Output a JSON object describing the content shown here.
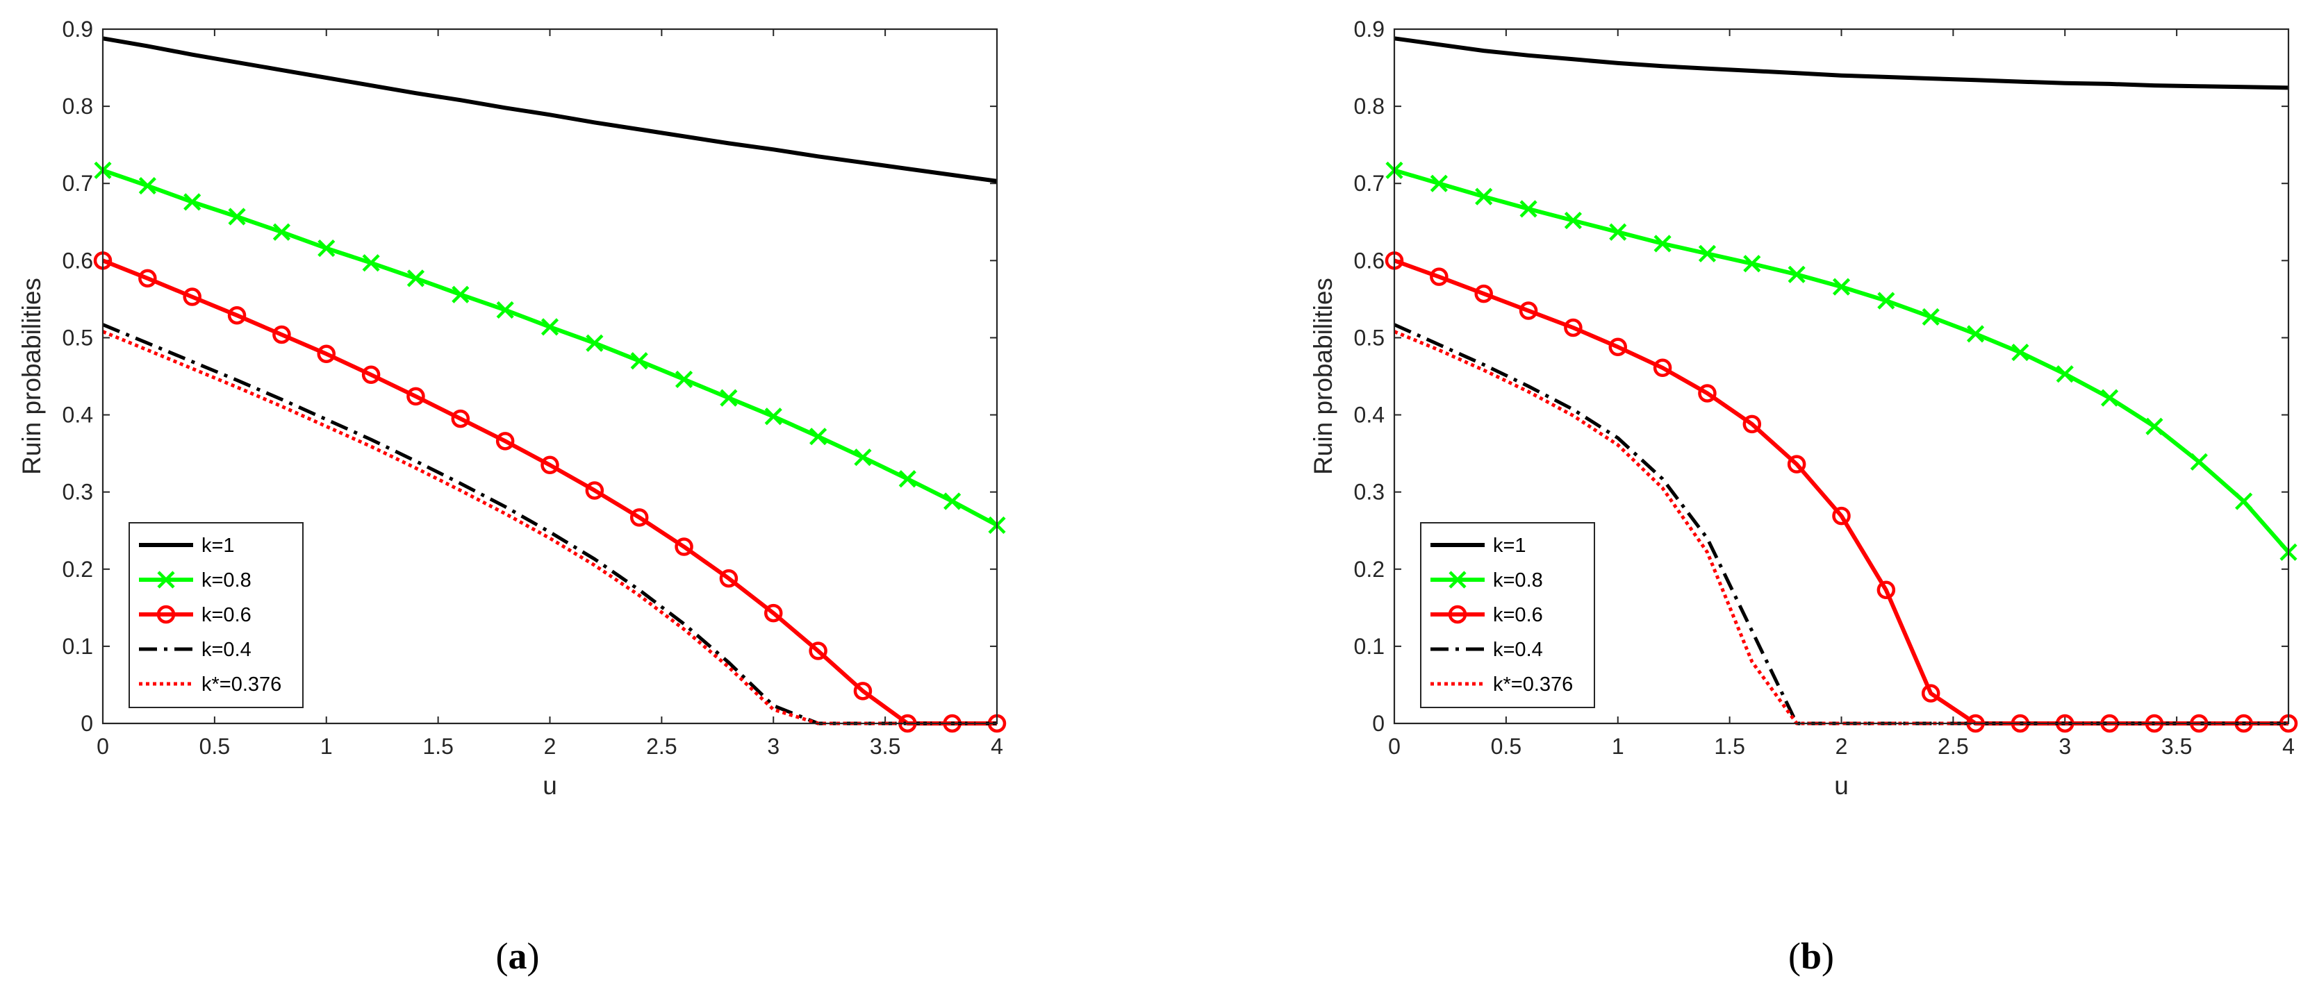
{
  "chart_data": [
    {
      "type": "line",
      "caption_letter": "a",
      "xlabel": "u",
      "ylabel": "Ruin probabilities",
      "xlim": [
        0,
        4
      ],
      "ylim": [
        0,
        0.9
      ],
      "xticks": [
        "0",
        "0.5",
        "1",
        "1.5",
        "2",
        "2.5",
        "3",
        "3.5",
        "4"
      ],
      "yticks": [
        "0",
        "0.1",
        "0.2",
        "0.3",
        "0.4",
        "0.5",
        "0.6",
        "0.7",
        "0.8",
        "0.9"
      ],
      "grid": false,
      "legend_position": "bottom-left",
      "x": [
        0,
        0.2,
        0.4,
        0.6,
        0.8,
        1.0,
        1.2,
        1.4,
        1.6,
        1.8,
        2.0,
        2.2,
        2.4,
        2.6,
        2.8,
        3.0,
        3.2,
        3.4,
        3.6,
        3.8,
        4.0
      ],
      "series": [
        {
          "name": "k=1",
          "color": "#000000",
          "style": "solid",
          "marker": "none",
          "values": [
            0.888,
            0.878,
            0.867,
            0.857,
            0.847,
            0.837,
            0.827,
            0.817,
            0.808,
            0.798,
            0.789,
            0.779,
            0.77,
            0.761,
            0.752,
            0.744,
            0.735,
            0.727,
            0.719,
            0.711,
            0.703
          ]
        },
        {
          "name": "k=0.8",
          "color": "#00ff00",
          "style": "solid",
          "marker": "x",
          "values": [
            0.717,
            0.697,
            0.676,
            0.657,
            0.637,
            0.616,
            0.597,
            0.577,
            0.556,
            0.536,
            0.514,
            0.493,
            0.47,
            0.446,
            0.422,
            0.398,
            0.372,
            0.345,
            0.317,
            0.288,
            0.257
          ]
        },
        {
          "name": "k=0.6",
          "color": "#ff0000",
          "style": "solid",
          "marker": "o",
          "values": [
            0.6,
            0.577,
            0.553,
            0.529,
            0.504,
            0.479,
            0.452,
            0.424,
            0.395,
            0.366,
            0.335,
            0.302,
            0.267,
            0.229,
            0.188,
            0.143,
            0.094,
            0.042,
            0.0,
            0.0,
            0.0
          ]
        },
        {
          "name": "k=0.4",
          "color": "#000000",
          "style": "dashdot",
          "marker": "none",
          "values": [
            0.517,
            0.493,
            0.469,
            0.445,
            0.42,
            0.394,
            0.368,
            0.34,
            0.311,
            0.281,
            0.248,
            0.213,
            0.173,
            0.129,
            0.079,
            0.023,
            0.0,
            0.0,
            0.0,
            0.0,
            0.0
          ]
        },
        {
          "name": "k*=0.376",
          "color": "#ff0000",
          "style": "dotted",
          "marker": "none",
          "values": [
            0.508,
            0.484,
            0.46,
            0.436,
            0.411,
            0.385,
            0.359,
            0.331,
            0.302,
            0.272,
            0.24,
            0.205,
            0.166,
            0.122,
            0.073,
            0.018,
            0.0,
            0.0,
            0.0,
            0.0,
            0.0
          ]
        }
      ]
    },
    {
      "type": "line",
      "caption_letter": "b",
      "xlabel": "u",
      "ylabel": "Ruin probabilities",
      "xlim": [
        0,
        4
      ],
      "ylim": [
        0,
        0.9
      ],
      "xticks": [
        "0",
        "0.5",
        "1",
        "1.5",
        "2",
        "2.5",
        "3",
        "3.5",
        "4"
      ],
      "yticks": [
        "0",
        "0.1",
        "0.2",
        "0.3",
        "0.4",
        "0.5",
        "0.6",
        "0.7",
        "0.8",
        "0.9"
      ],
      "grid": false,
      "legend_position": "bottom-left",
      "x": [
        0,
        0.2,
        0.4,
        0.6,
        0.8,
        1.0,
        1.2,
        1.4,
        1.6,
        1.8,
        2.0,
        2.2,
        2.4,
        2.6,
        2.8,
        3.0,
        3.2,
        3.4,
        3.6,
        3.8,
        4.0
      ],
      "series": [
        {
          "name": "k=1",
          "color": "#000000",
          "style": "solid",
          "marker": "none",
          "values": [
            0.888,
            0.88,
            0.872,
            0.866,
            0.861,
            0.856,
            0.852,
            0.849,
            0.846,
            0.843,
            0.84,
            0.838,
            0.836,
            0.834,
            0.832,
            0.83,
            0.829,
            0.827,
            0.826,
            0.825,
            0.824
          ]
        },
        {
          "name": "k=0.8",
          "color": "#00ff00",
          "style": "solid",
          "marker": "x",
          "values": [
            0.717,
            0.7,
            0.683,
            0.667,
            0.652,
            0.637,
            0.622,
            0.609,
            0.596,
            0.582,
            0.566,
            0.548,
            0.527,
            0.505,
            0.481,
            0.453,
            0.422,
            0.385,
            0.339,
            0.288,
            0.222
          ]
        },
        {
          "name": "k=0.6",
          "color": "#ff0000",
          "style": "solid",
          "marker": "o",
          "values": [
            0.6,
            0.579,
            0.557,
            0.535,
            0.513,
            0.488,
            0.461,
            0.428,
            0.388,
            0.336,
            0.269,
            0.173,
            0.039,
            0.0,
            0.0,
            0.0,
            0.0,
            0.0,
            0.0,
            0.0,
            0.0
          ]
        },
        {
          "name": "k=0.4",
          "color": "#000000",
          "style": "dashdot",
          "marker": "none",
          "values": [
            0.517,
            0.491,
            0.465,
            0.437,
            0.407,
            0.37,
            0.317,
            0.24,
            0.12,
            0.0,
            0.0,
            0.0,
            0.0,
            0.0,
            0.0,
            0.0,
            0.0,
            0.0,
            0.0,
            0.0,
            0.0
          ]
        },
        {
          "name": "k*=0.376",
          "color": "#ff0000",
          "style": "dotted",
          "marker": "none",
          "values": [
            0.508,
            0.484,
            0.458,
            0.43,
            0.399,
            0.361,
            0.305,
            0.222,
            0.08,
            0.0,
            0.0,
            0.0,
            0.0,
            0.0,
            0.0,
            0.0,
            0.0,
            0.0,
            0.0,
            0.0,
            0.0
          ]
        }
      ]
    }
  ]
}
